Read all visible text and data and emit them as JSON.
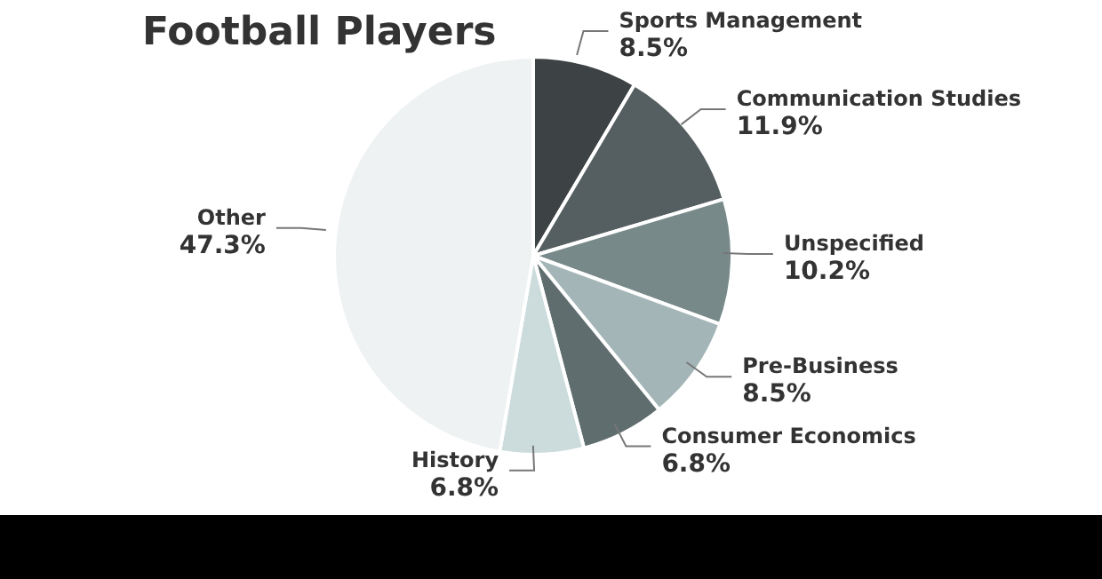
{
  "chart_data": {
    "type": "pie",
    "title": "Football Players",
    "categories": [
      "Sports Management",
      "Communication Studies",
      "Unspecified",
      "Pre-Business",
      "Consumer Economics",
      "History",
      "Other"
    ],
    "values": [
      8.5,
      11.9,
      10.2,
      8.5,
      6.8,
      6.8,
      47.3
    ],
    "value_labels": [
      "8.5%",
      "11.9%",
      "10.2%",
      "8.5%",
      "6.8%",
      "6.8%",
      "47.3%"
    ],
    "colors": [
      "#3d4244",
      "#555e61",
      "#78898a",
      "#a3b5b7",
      "#5f6d6f",
      "#ccdbdc",
      "#eef2f2"
    ],
    "legend": false
  }
}
